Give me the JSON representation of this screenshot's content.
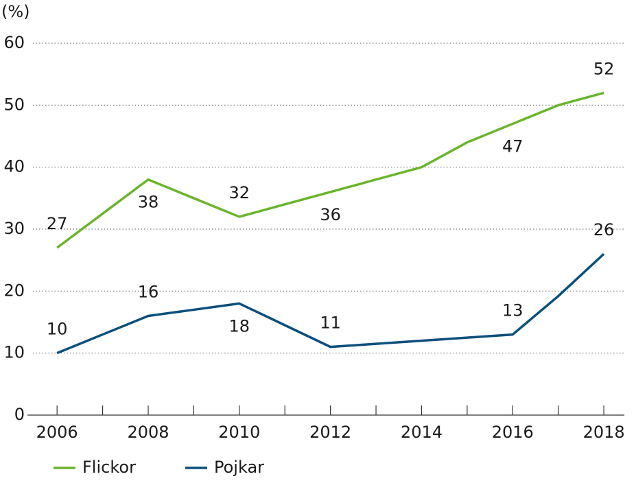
{
  "chart_data": {
    "type": "line",
    "y_label": "(%)",
    "x": [
      2006,
      2007,
      2008,
      2009,
      2010,
      2011,
      2012,
      2013,
      2014,
      2015,
      2016,
      2017,
      2018
    ],
    "xlim": [
      2005.35,
      2018.45
    ],
    "xticks": [
      2006,
      2008,
      2010,
      2012,
      2014,
      2016,
      2018
    ],
    "minor_xticks": [
      2007,
      2009,
      2011,
      2013,
      2015,
      2017
    ],
    "ylim": [
      0,
      60
    ],
    "yticks": [
      0,
      10,
      20,
      30,
      40,
      50,
      60
    ],
    "grid": true,
    "legend": "bottom",
    "series": [
      {
        "name": "Flickor",
        "color": "#6ab42d",
        "values": [
          27,
          32.5,
          38,
          35,
          32,
          34,
          36,
          38,
          40,
          44,
          47,
          50,
          52
        ],
        "labels": [
          27,
          null,
          38,
          null,
          32,
          null,
          36,
          null,
          null,
          null,
          47,
          null,
          52
        ]
      },
      {
        "name": "Pojkar",
        "color": "#0b4f7c",
        "values": [
          10,
          13,
          16,
          17,
          18,
          14.5,
          11,
          11.5,
          12,
          12.5,
          13,
          19.2,
          26
        ],
        "labels": [
          10,
          null,
          16,
          null,
          18,
          null,
          11,
          null,
          null,
          null,
          13,
          null,
          26
        ]
      }
    ]
  }
}
